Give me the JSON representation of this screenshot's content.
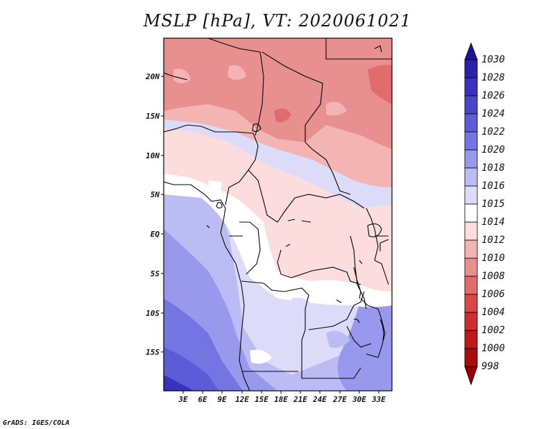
{
  "title": "MSLP [hPa], VT: 2020061021",
  "footer": "GrADS: IGES/COLA",
  "y_ticks": [
    "20N",
    "15N",
    "10N",
    "5N",
    "EQ",
    "5S",
    "10S",
    "15S"
  ],
  "x_ticks": [
    "3E",
    "6E",
    "9E",
    "12E",
    "15E",
    "18E",
    "21E",
    "24E",
    "27E",
    "30E",
    "33E"
  ],
  "colorbar": {
    "levels": [
      "1030",
      "1028",
      "1026",
      "1024",
      "1022",
      "1020",
      "1018",
      "1016",
      "1015",
      "1014",
      "1012",
      "1010",
      "1008",
      "1006",
      "1004",
      "1002",
      "1000",
      "998"
    ],
    "colors": [
      "#1e1496",
      "#2a22a8",
      "#3a32bc",
      "#4a46cc",
      "#5c5cd8",
      "#7474e2",
      "#9898ec",
      "#bcbcf4",
      "#dcdcfa",
      "#ffffff",
      "#fcdcdc",
      "#f4b4b4",
      "#e89090",
      "#e06c6c",
      "#d84848",
      "#d02c2c",
      "#c01818",
      "#a80c0c",
      "#960000"
    ]
  },
  "map_colors": {
    "very_high": "#7474e2",
    "high": "#9898ec",
    "mid_high": "#bcbcf4",
    "light_high": "#dcdcfa",
    "neutral": "#ffffff",
    "light_low": "#fcdcdc",
    "low": "#f4b4b4",
    "lower": "#e89090",
    "lowest": "#e06c6c"
  }
}
